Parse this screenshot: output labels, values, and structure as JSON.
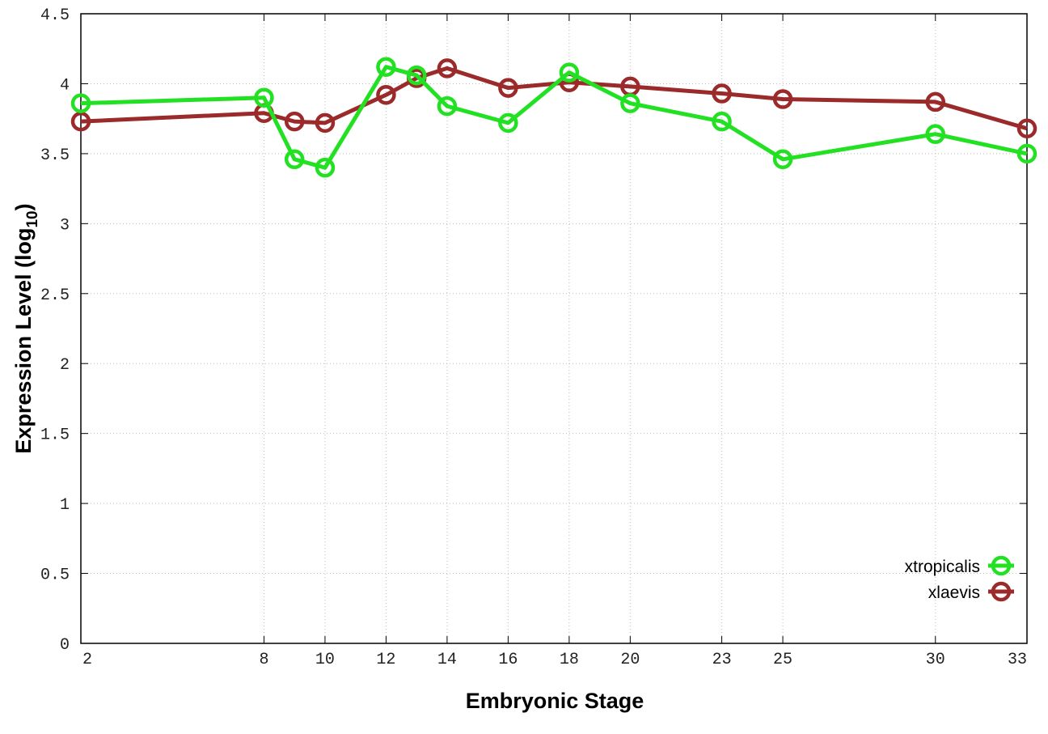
{
  "chart_data": {
    "type": "line",
    "title": "",
    "xlabel": "Embryonic Stage",
    "ylabel_main": "Expression Level (log",
    "ylabel_sub": "10",
    "ylabel_close": ")",
    "xlim": [
      2,
      33
    ],
    "ylim": [
      0,
      4.5
    ],
    "grid": true,
    "legend_position": "bottom-right",
    "x": [
      2,
      8,
      9,
      10,
      12,
      13,
      14,
      16,
      18,
      20,
      23,
      25,
      30,
      33
    ],
    "xticks": [
      2,
      8,
      10,
      12,
      14,
      16,
      18,
      20,
      23,
      25,
      30,
      33
    ],
    "yticks": [
      "0",
      "0.5",
      "1",
      "1.5",
      "2",
      "2.5",
      "3",
      "3.5",
      "4",
      "4.5"
    ],
    "series": [
      {
        "name": "xtropicalis",
        "color": "#22e022",
        "values": [
          3.86,
          3.9,
          3.46,
          3.4,
          4.12,
          4.06,
          3.84,
          3.72,
          4.08,
          3.86,
          3.73,
          3.46,
          3.64,
          3.5
        ]
      },
      {
        "name": "xlaevis",
        "color": "#9b2a2a",
        "values": [
          3.73,
          3.79,
          3.73,
          3.72,
          3.92,
          4.04,
          4.11,
          3.97,
          4.01,
          3.98,
          3.93,
          3.89,
          3.87,
          3.68
        ]
      }
    ]
  }
}
